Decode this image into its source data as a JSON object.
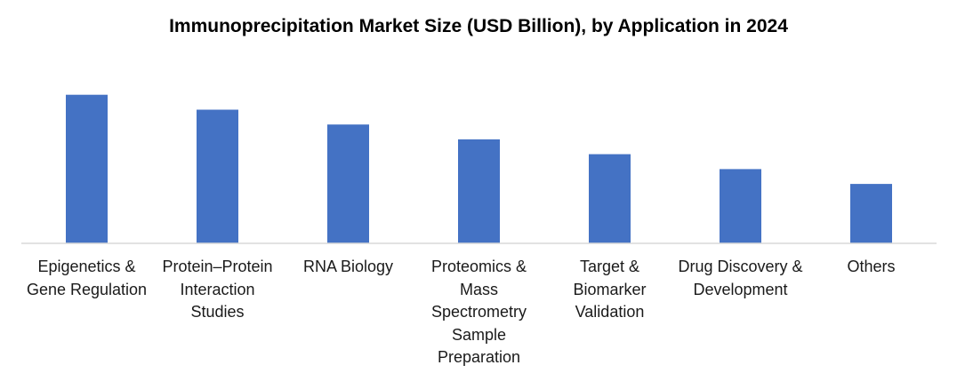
{
  "chart_data": {
    "type": "bar",
    "title": "Immunoprecipitation Market Size (USD Billion), by Application in 2024",
    "categories": [
      "Epigenetics &\nGene Regulation",
      "Protein–Protein\nInteraction\nStudies",
      "RNA Biology",
      "Proteomics &\nMass\nSpectrometry\nSample\nPreparation",
      "Target &\nBiomarker\nValidation",
      "Drug Discovery &\nDevelopment",
      "Others"
    ],
    "values": [
      1.0,
      0.9,
      0.8,
      0.7,
      0.6,
      0.5,
      0.4
    ],
    "ylim": [
      0,
      1.1
    ],
    "grid": false,
    "legend": "none",
    "colors": {
      "bar": "#4472C4",
      "axis": "#d9d9d9"
    }
  }
}
